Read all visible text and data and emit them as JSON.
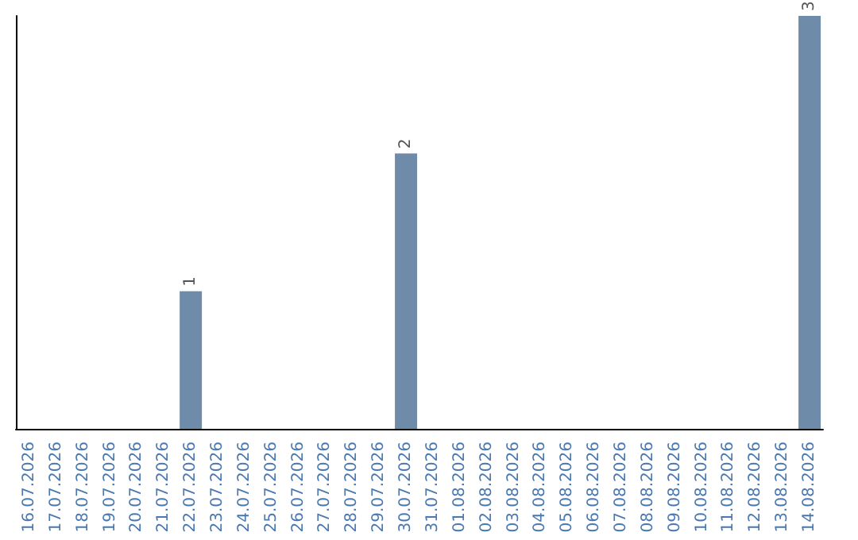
{
  "chart_data": {
    "type": "bar",
    "categories": [
      "16.07.2026",
      "17.07.2026",
      "18.07.2026",
      "19.07.2026",
      "20.07.2026",
      "21.07.2026",
      "22.07.2026",
      "23.07.2026",
      "24.07.2026",
      "25.07.2026",
      "26.07.2026",
      "27.07.2026",
      "28.07.2026",
      "29.07.2026",
      "30.07.2026",
      "31.07.2026",
      "01.08.2026",
      "02.08.2026",
      "03.08.2026",
      "04.08.2026",
      "05.08.2026",
      "06.08.2026",
      "07.08.2026",
      "08.08.2026",
      "09.08.2026",
      "10.08.2026",
      "11.08.2026",
      "12.08.2026",
      "13.08.2026",
      "14.08.2026"
    ],
    "values": [
      0,
      0,
      0,
      0,
      0,
      0,
      1,
      0,
      0,
      0,
      0,
      0,
      0,
      0,
      2,
      0,
      0,
      0,
      0,
      0,
      0,
      0,
      0,
      0,
      0,
      0,
      0,
      0,
      0,
      3
    ],
    "value_labels": [
      null,
      null,
      null,
      null,
      null,
      null,
      "1",
      null,
      null,
      null,
      null,
      null,
      null,
      null,
      "2",
      null,
      null,
      null,
      null,
      null,
      null,
      null,
      null,
      null,
      null,
      null,
      null,
      null,
      null,
      "3"
    ],
    "color": "#6e8caa",
    "grid": false,
    "tick_labels": "x"
  }
}
